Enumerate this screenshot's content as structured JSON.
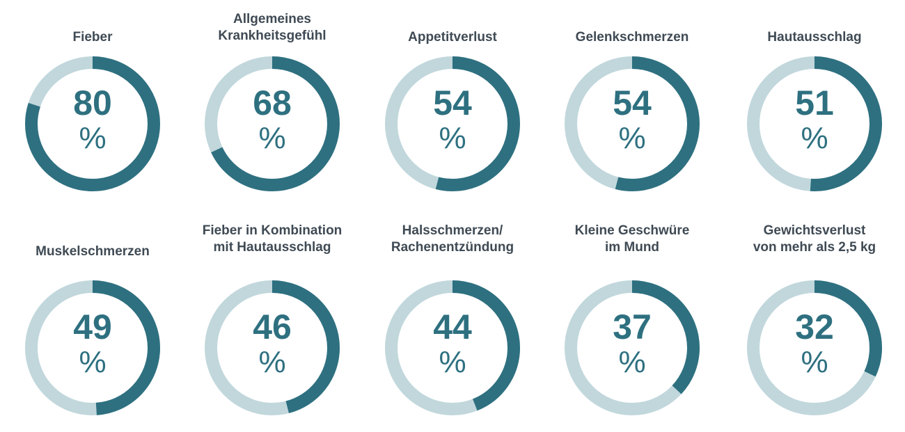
{
  "chart_data": {
    "type": "donut",
    "unit": "%",
    "colors": {
      "fill": "#2e7080",
      "track": "#c1d7dc",
      "label": "#3f4a54"
    },
    "items": [
      {
        "label": "Fieber",
        "value": 80
      },
      {
        "label": "Allgemeines\nKrankheitsgefühl",
        "value": 68
      },
      {
        "label": "Appetitverlust",
        "value": 54
      },
      {
        "label": "Gelenkschmerzen",
        "value": 54
      },
      {
        "label": "Hautausschlag",
        "value": 51
      },
      {
        "label": "Muskelschmerzen",
        "value": 49
      },
      {
        "label": "Fieber in Kombination\nmit Hautausschlag",
        "value": 46
      },
      {
        "label": "Halsschmerzen/\nRachenentzündung",
        "value": 44
      },
      {
        "label": "Kleine Geschwüre\nim Mund",
        "value": 37
      },
      {
        "label": "Gewichtsverlust\nvon mehr als 2,5 kg",
        "value": 32
      }
    ]
  }
}
